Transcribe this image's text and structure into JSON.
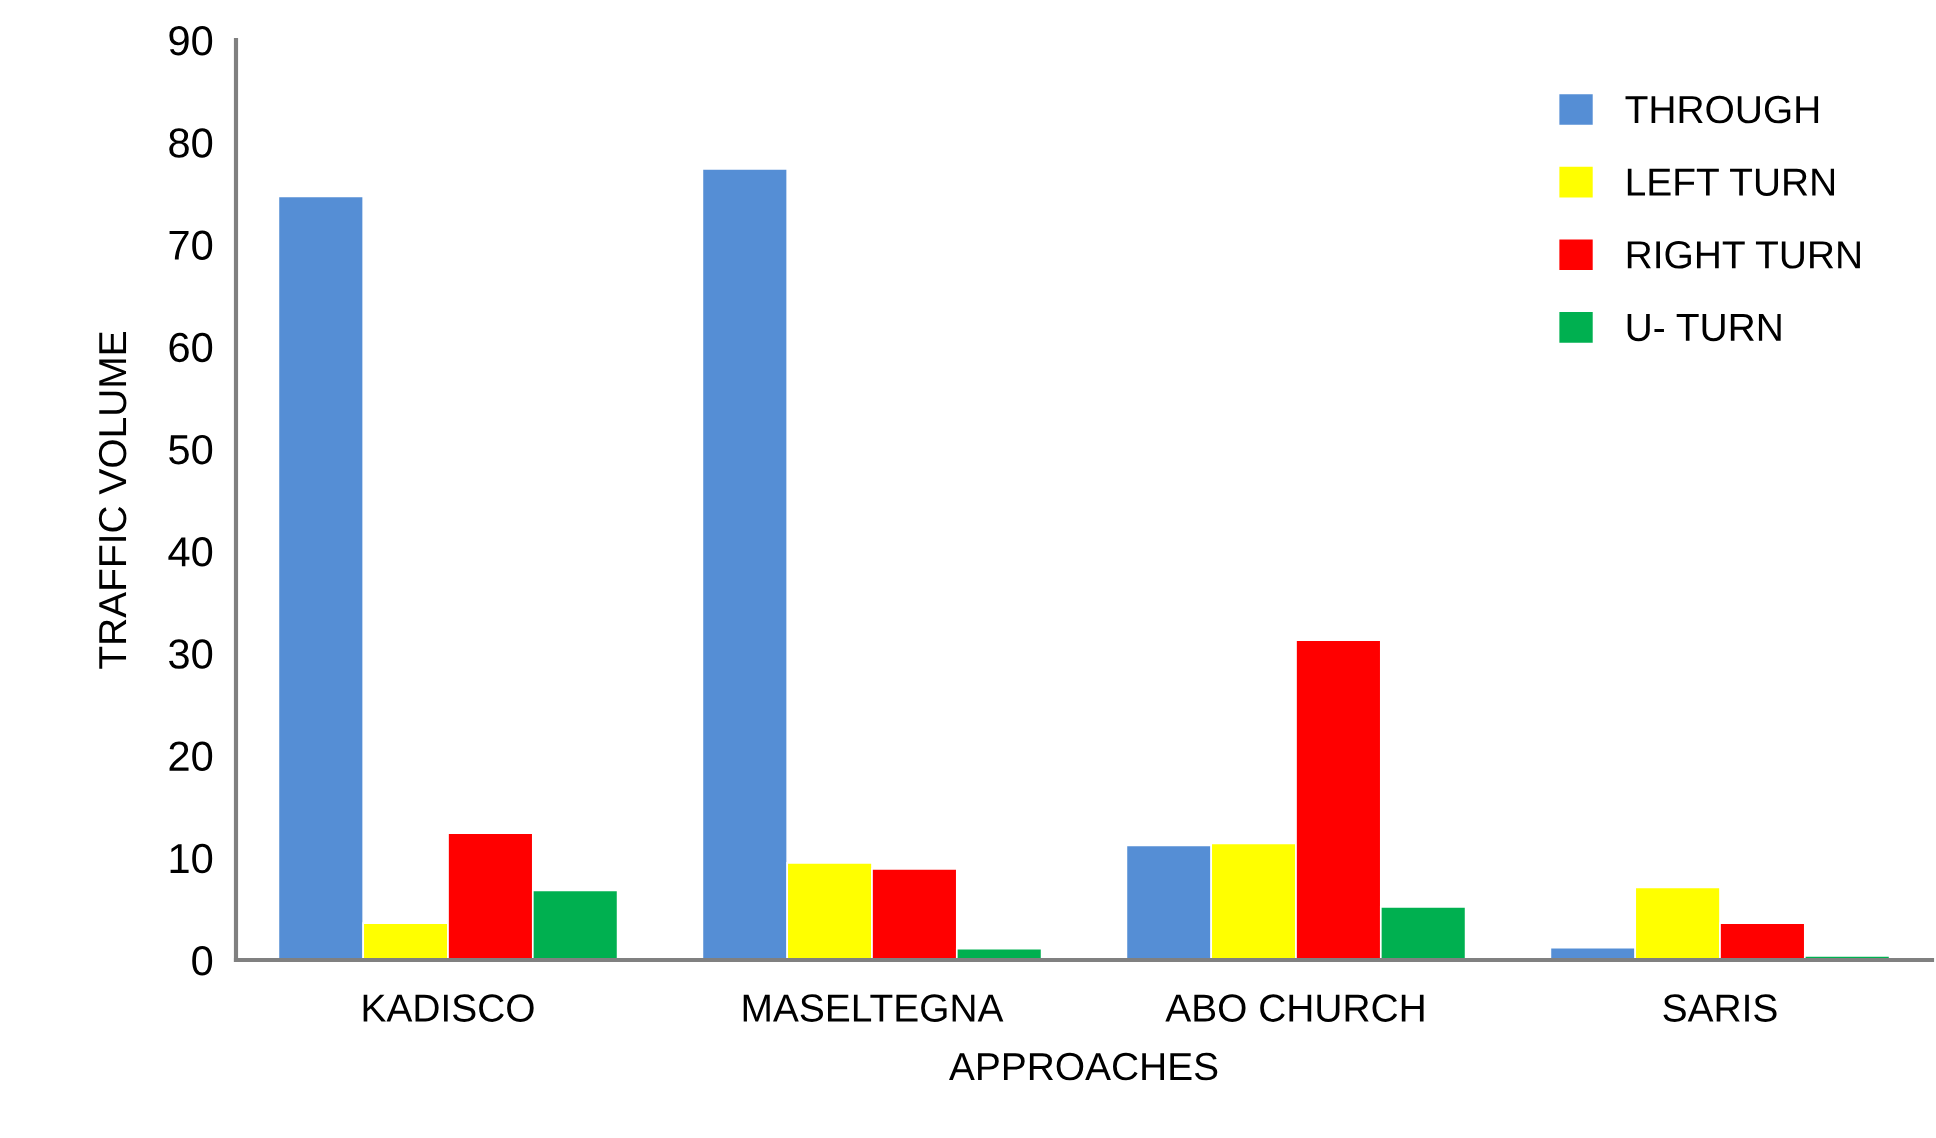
{
  "chart_data": {
    "type": "bar",
    "xlabel": "APPROACHES",
    "ylabel": "TRAFFIC VOLUME",
    "categories": [
      "KADISCO",
      "MASELTEGNA",
      "ABO CHURCH",
      "SARIS"
    ],
    "series": [
      {
        "name": "THROUGH",
        "color": "#558ed5",
        "values": [
          74.7,
          77.4,
          11.2,
          1.2
        ]
      },
      {
        "name": "LEFT TURN",
        "color": "#ffff00",
        "values": [
          3.6,
          9.5,
          11.4,
          7.1
        ]
      },
      {
        "name": "RIGHT TURN",
        "color": "#ff0000",
        "values": [
          12.4,
          8.9,
          31.3,
          3.6
        ]
      },
      {
        "name": "U- TURN",
        "color": "#00b050",
        "values": [
          6.8,
          1.1,
          5.2,
          0.4
        ]
      }
    ],
    "ylim": [
      0,
      90
    ],
    "yticks": [
      0,
      10,
      20,
      30,
      40,
      50,
      60,
      70,
      80,
      90
    ],
    "grid": false,
    "legend": "top right"
  }
}
